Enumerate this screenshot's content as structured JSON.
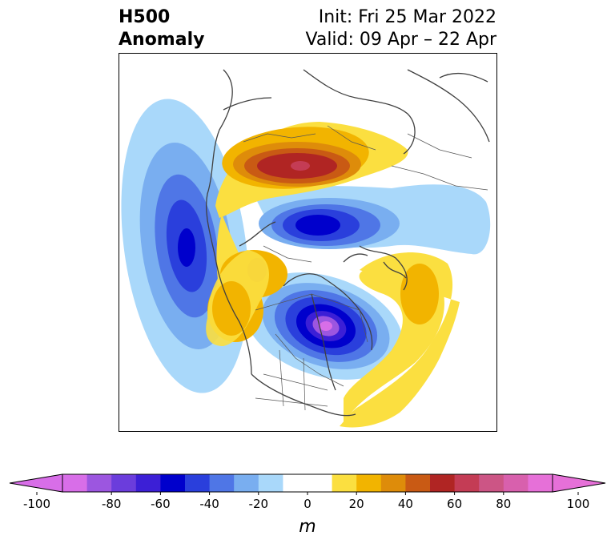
{
  "title": {
    "left_line1": "H500",
    "left_line2": "Anomaly",
    "right_line1": "Init: Fri 25 Mar 2022",
    "right_line2": "Valid: 09 Apr – 22 Apr"
  },
  "colorbar": {
    "ticks": [
      -100,
      -80,
      -60,
      -40,
      -20,
      0,
      20,
      40,
      60,
      80,
      100
    ],
    "tick_labels": [
      "-100",
      "-80",
      "-60",
      "-40",
      "-20",
      "0",
      "20",
      "40",
      "60",
      "80",
      "100"
    ],
    "min": -100,
    "max": 100,
    "step": 10,
    "unit": "m",
    "extend": "both",
    "colors": [
      "#d86ee8",
      "#9c56e0",
      "#6b3ddc",
      "#3c1fd6",
      "#0000cc",
      "#2a3fdc",
      "#4f76e6",
      "#79aef0",
      "#a9d8fa",
      "#ffffff",
      "#ffffff",
      "#fbdf40",
      "#f2b400",
      "#de8c0a",
      "#c95a14",
      "#b02523",
      "#c43c55",
      "#cc5585",
      "#d860ad",
      "#e670d8"
    ],
    "extend_low_color": "#d86ee8",
    "extend_high_color": "#e670d8"
  }
}
